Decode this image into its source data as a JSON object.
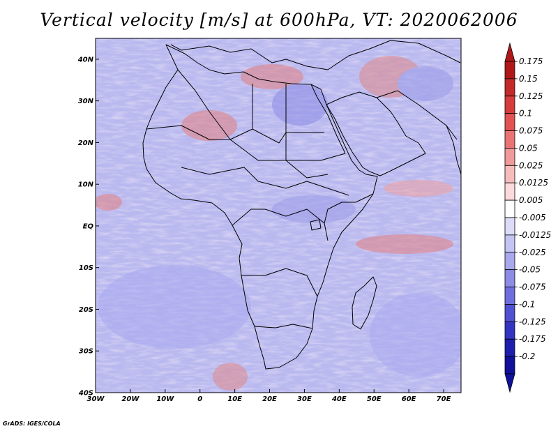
{
  "title": "Vertical velocity [m/s] at 600hPa, VT: 2020062006",
  "credit": "GrADS: IGES/COLA",
  "axes": {
    "lon_labels": [
      "30W",
      "20W",
      "10W",
      "0",
      "10E",
      "20E",
      "30E",
      "40E",
      "50E",
      "60E",
      "70E"
    ],
    "lat_labels": [
      "40N",
      "30N",
      "20N",
      "10N",
      "EQ",
      "10S",
      "20S",
      "30S",
      "40S"
    ]
  },
  "colorbar": {
    "labels": [
      "0.175",
      "0.15",
      "0.125",
      "0.1",
      "0.075",
      "0.05",
      "0.025",
      "0.0125",
      "0.005",
      "-0.005",
      "-0.0125",
      "-0.025",
      "-0.05",
      "-0.075",
      "-0.1",
      "-0.125",
      "-0.175",
      "-0.2"
    ],
    "colors": [
      "#b01818",
      "#c52a2a",
      "#d63c3c",
      "#e25252",
      "#ea7474",
      "#f19a9a",
      "#f6bcbc",
      "#fadada",
      "#ffffff",
      "#dcdcf8",
      "#c4c4f4",
      "#a8a8ee",
      "#8c8ce6",
      "#6e6ede",
      "#5050d2",
      "#3434c2",
      "#1e1eae",
      "#10109a"
    ]
  }
}
